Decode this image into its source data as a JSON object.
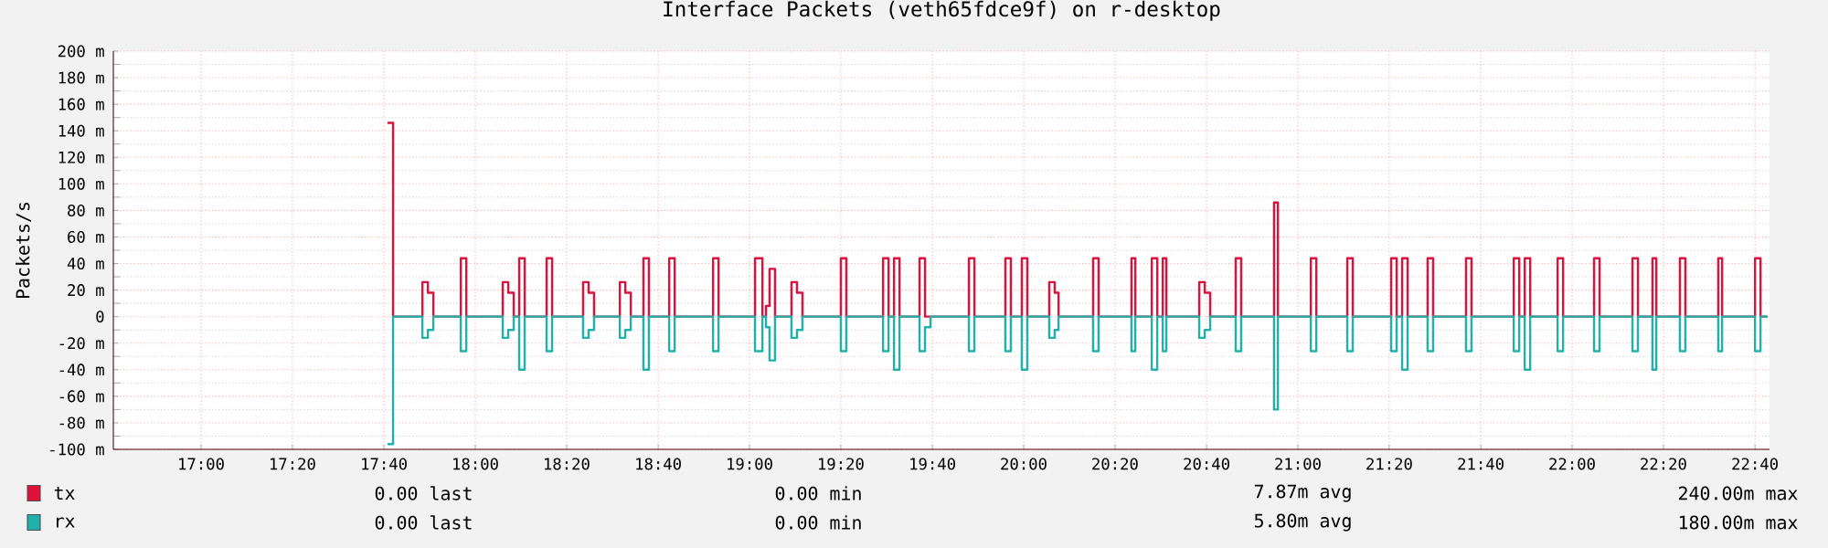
{
  "chart_data": {
    "type": "step",
    "title": "Interface Packets (veth65fdce9f) on r-desktop",
    "ylabel": "Packets/s",
    "x": [
      17.68,
      17.7,
      17.807,
      17.827,
      17.847,
      17.947,
      17.967,
      18.1,
      18.12,
      18.14,
      18.16,
      18.18,
      18.26,
      18.28,
      18.393,
      18.413,
      18.433,
      18.527,
      18.547,
      18.567,
      18.613,
      18.633,
      18.707,
      18.727,
      18.867,
      18.887,
      19.02,
      19.047,
      19.06,
      19.073,
      19.093,
      19.153,
      19.173,
      19.193,
      19.333,
      19.353,
      19.487,
      19.507,
      19.527,
      19.547,
      19.62,
      19.64,
      19.66,
      19.8,
      19.82,
      19.933,
      19.953,
      19.993,
      20.013,
      20.093,
      20.113,
      20.127,
      20.253,
      20.273,
      20.393,
      20.407,
      20.467,
      20.487,
      20.507,
      20.52,
      20.64,
      20.66,
      20.68,
      20.773,
      20.793,
      20.913,
      20.927,
      21.047,
      21.067,
      21.18,
      21.2,
      21.34,
      21.36,
      21.38,
      21.4,
      21.473,
      21.493,
      21.613,
      21.633,
      21.787,
      21.807,
      21.827,
      21.847,
      21.947,
      21.967,
      22.08,
      22.1,
      22.22,
      22.24,
      22.293,
      22.307,
      22.393,
      22.413,
      22.533,
      22.547,
      22.667,
      22.687,
      22.713
    ],
    "series": [
      {
        "name": "tx",
        "color": "#e0103a",
        "values": [
          146,
          0,
          26,
          18,
          0,
          44,
          0,
          26,
          18,
          0,
          44,
          0,
          44,
          0,
          26,
          18,
          0,
          26,
          18,
          0,
          44,
          0,
          44,
          0,
          44,
          0,
          44,
          0,
          8,
          36,
          0,
          26,
          18,
          0,
          44,
          0,
          44,
          0,
          44,
          0,
          44,
          0,
          0,
          44,
          0,
          44,
          0,
          44,
          0,
          26,
          18,
          0,
          44,
          0,
          44,
          0,
          44,
          0,
          44,
          0,
          26,
          18,
          0,
          44,
          0,
          86,
          0,
          44,
          0,
          44,
          0,
          44,
          0,
          44,
          0,
          44,
          0,
          44,
          0,
          44,
          0,
          44,
          0,
          44,
          0,
          44,
          0,
          44,
          0,
          44,
          0,
          44,
          0,
          44,
          0,
          44,
          0,
          0
        ]
      },
      {
        "name": "rx",
        "color": "#20b2aa",
        "values": [
          -96,
          0,
          -16,
          -10,
          0,
          -26,
          0,
          -16,
          -10,
          0,
          -40,
          0,
          -26,
          0,
          -16,
          -10,
          0,
          -16,
          -10,
          0,
          -40,
          0,
          -26,
          0,
          -26,
          0,
          -26,
          0,
          -8,
          -33,
          0,
          -16,
          -10,
          0,
          -26,
          0,
          -26,
          0,
          -40,
          0,
          -26,
          -8,
          0,
          -26,
          0,
          -26,
          0,
          -40,
          0,
          -16,
          -10,
          0,
          -26,
          0,
          -26,
          0,
          -40,
          0,
          -26,
          0,
          -16,
          -10,
          0,
          -26,
          0,
          -70,
          0,
          -26,
          0,
          -26,
          0,
          -26,
          0,
          -40,
          0,
          -26,
          0,
          -26,
          0,
          -26,
          0,
          -40,
          0,
          -26,
          0,
          -26,
          0,
          -26,
          0,
          -40,
          0,
          -26,
          0,
          -26,
          0,
          -26,
          0,
          0
        ]
      }
    ],
    "xlim": [
      16.68,
      22.72
    ],
    "xticks": [
      {
        "value": 17,
        "label": "17:00"
      },
      {
        "value": 17.333,
        "label": "17:20"
      },
      {
        "value": 17.667,
        "label": "17:40"
      },
      {
        "value": 18,
        "label": "18:00"
      },
      {
        "value": 18.333,
        "label": "18:20"
      },
      {
        "value": 18.667,
        "label": "18:40"
      },
      {
        "value": 19,
        "label": "19:00"
      },
      {
        "value": 19.333,
        "label": "19:20"
      },
      {
        "value": 19.667,
        "label": "19:40"
      },
      {
        "value": 20,
        "label": "20:00"
      },
      {
        "value": 20.333,
        "label": "20:20"
      },
      {
        "value": 20.667,
        "label": "20:40"
      },
      {
        "value": 21,
        "label": "21:00"
      },
      {
        "value": 21.333,
        "label": "21:20"
      },
      {
        "value": 21.667,
        "label": "21:40"
      },
      {
        "value": 22,
        "label": "22:00"
      },
      {
        "value": 22.333,
        "label": "22:20"
      },
      {
        "value": 22.667,
        "label": "22:40"
      }
    ],
    "ylim": [
      -100,
      200
    ],
    "yticks": [
      {
        "value": -100,
        "label": "-100 m"
      },
      {
        "value": -80,
        "label": "-80 m"
      },
      {
        "value": -60,
        "label": "-60 m"
      },
      {
        "value": -40,
        "label": "-40 m"
      },
      {
        "value": -20,
        "label": "-20 m"
      },
      0,
      {
        "value": 20,
        "label": "20 m"
      },
      {
        "value": 40,
        "label": "40 m"
      },
      {
        "value": 60,
        "label": "60 m"
      },
      {
        "value": 80,
        "label": "80 m"
      },
      {
        "value": 100,
        "label": "100 m"
      },
      {
        "value": 120,
        "label": "120 m"
      },
      {
        "value": 140,
        "label": "140 m"
      },
      {
        "value": 160,
        "label": "160 m"
      },
      {
        "value": 180,
        "label": "180 m"
      },
      {
        "value": 200,
        "label": "200 m"
      }
    ],
    "grid": true,
    "legend": "bottom",
    "annotations": [
      "0.00 last",
      "0.00 min",
      "7.87m avg",
      "240.00m max",
      "0.00 last",
      "0.00 min",
      "5.80m avg",
      "180.00m max"
    ]
  }
}
